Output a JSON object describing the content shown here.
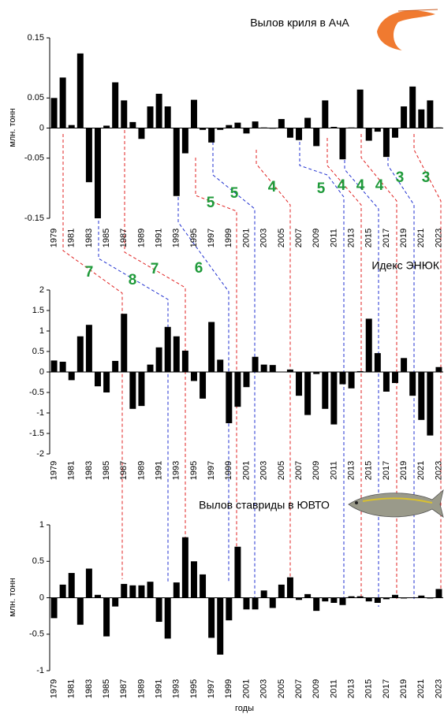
{
  "chart_data": [
    {
      "type": "bar",
      "title": "Вылов криля в АчА",
      "y_label": "млн. тонн",
      "color": "#000000",
      "categories": [
        "1979",
        null,
        "1981",
        null,
        "1983",
        null,
        "1985",
        null,
        "1987",
        null,
        "1989",
        null,
        "1991",
        null,
        "1993",
        null,
        "1995",
        null,
        "1997",
        null,
        "1999",
        null,
        "2001",
        null,
        "2003",
        null,
        "2005",
        null,
        "2007",
        null,
        "2009",
        null,
        "2011",
        null,
        "2013",
        null,
        "2015",
        null,
        "2017",
        null,
        "2019",
        null,
        "2021",
        null,
        "2023"
      ],
      "values": [
        0.05,
        0.084,
        0.005,
        0.124,
        -0.09,
        -0.15,
        0.004,
        0.076,
        0.046,
        0.01,
        -0.018,
        0.036,
        0.057,
        0.036,
        -0.113,
        -0.042,
        0.047,
        -0.003,
        -0.024,
        -0.003,
        0.005,
        0.009,
        -0.009,
        0.011,
        0.001,
        -0.001,
        0.015,
        -0.016,
        -0.02,
        0.017,
        -0.03,
        0.046,
        0.002,
        -0.052,
        0.001,
        0.064,
        -0.021,
        -0.006,
        -0.048,
        -0.016,
        0.036,
        0.069,
        0.031,
        0.046,
        0.001
      ],
      "ylim": [
        -0.15,
        0.15
      ],
      "yticks": [
        -0.15,
        -0.05,
        0,
        0.05,
        0.15
      ]
    },
    {
      "type": "bar",
      "title": "Идекс ЭНЮК",
      "color": "#000000",
      "categories": [
        "1979",
        null,
        "1981",
        null,
        "1983",
        null,
        "1985",
        null,
        "1987",
        null,
        "1989",
        null,
        "1991",
        null,
        "1993",
        null,
        "1995",
        null,
        "1997",
        null,
        "1999",
        null,
        "2001",
        null,
        "2003",
        null,
        "2005",
        null,
        "2007",
        null,
        "2009",
        null,
        "2011",
        null,
        "2013",
        null,
        "2015",
        null,
        "2017",
        null,
        "2019",
        null,
        "2021",
        null,
        "2023"
      ],
      "values": [
        0.28,
        0.25,
        -0.2,
        0.87,
        1.15,
        -0.35,
        -0.5,
        0.27,
        1.42,
        -0.9,
        -0.83,
        0.18,
        0.6,
        1.1,
        0.87,
        0.52,
        -0.22,
        -0.65,
        1.22,
        0.3,
        -1.25,
        -0.85,
        -0.37,
        0.37,
        0.18,
        0.17,
        0,
        0.06,
        -0.58,
        -1.05,
        -0.05,
        -0.9,
        -1.28,
        -0.3,
        -0.4,
        0.02,
        1.3,
        0.46,
        -0.48,
        -0.27,
        0.34,
        -0.58,
        -1.17,
        -1.55,
        0.12
      ],
      "ylim": [
        -2,
        2
      ],
      "yticks": [
        -2,
        -1.5,
        -1,
        -0.5,
        0,
        0.5,
        1,
        1.5,
        2
      ]
    },
    {
      "type": "bar",
      "title": "Вылов ставриды в ЮВТО",
      "y_label": "млн. тонн",
      "x_label": "годы",
      "color": "#000000",
      "categories": [
        "1979",
        null,
        "1981",
        null,
        "1983",
        null,
        "1985",
        null,
        "1987",
        null,
        "1989",
        null,
        "1991",
        null,
        "1993",
        null,
        "1995",
        null,
        "1997",
        null,
        "1999",
        null,
        "2001",
        null,
        "2003",
        null,
        "2005",
        null,
        "2007",
        null,
        "2009",
        null,
        "2011",
        null,
        "2013",
        null,
        "2015",
        null,
        "2017",
        null,
        "2019",
        null,
        "2021",
        null,
        "2023"
      ],
      "values": [
        -0.28,
        0.18,
        0.34,
        -0.37,
        0.4,
        0.04,
        -0.53,
        -0.12,
        0.19,
        0.17,
        0.17,
        0.22,
        -0.33,
        -0.56,
        0.21,
        0.83,
        0.5,
        0.32,
        -0.55,
        -0.78,
        -0.31,
        0.7,
        -0.16,
        -0.16,
        0.1,
        -0.14,
        0.18,
        0.28,
        -0.03,
        0.05,
        -0.18,
        -0.05,
        -0.07,
        -0.1,
        0.02,
        0.02,
        -0.05,
        -0.07,
        -0.02,
        0.04,
        -0.01,
        0,
        0.03,
        -0.01,
        0.12
      ],
      "ylim": [
        -1,
        1
      ],
      "yticks": [
        -1,
        -0.5,
        0,
        0.5,
        1
      ]
    }
  ],
  "annotations": [
    "5",
    "5",
    "4",
    "5",
    "4",
    "4",
    "4",
    "3",
    "3",
    "7",
    "8",
    "7",
    "6"
  ]
}
